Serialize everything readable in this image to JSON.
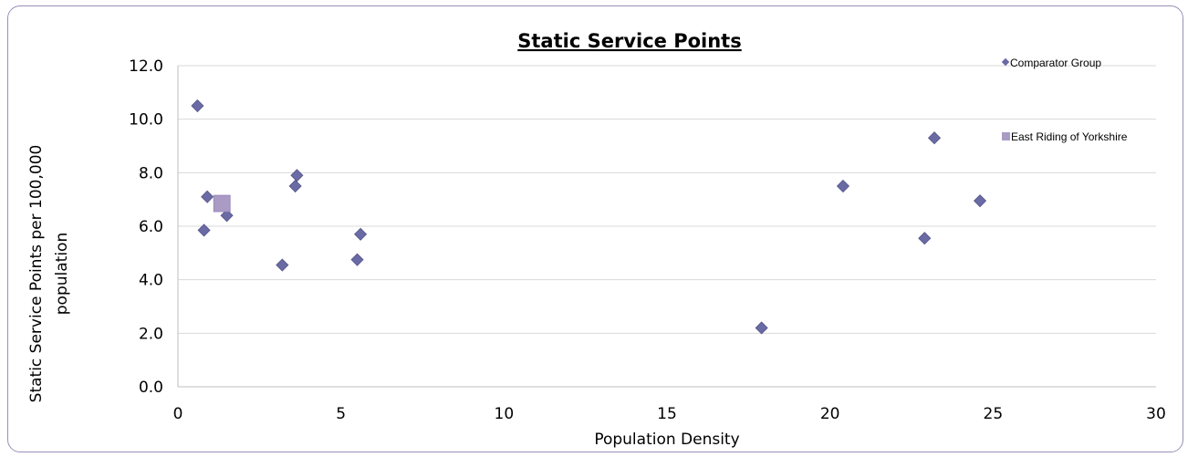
{
  "chart_data": {
    "type": "scatter",
    "title": "Static Service Points",
    "xlabel": "Population Density",
    "ylabel_line1": "Static Service Points per 100,000",
    "ylabel_line2": "population",
    "xlim": [
      0,
      30
    ],
    "ylim": [
      0,
      12
    ],
    "x_ticks": [
      "0",
      "5",
      "10",
      "15",
      "20",
      "25",
      "30"
    ],
    "y_ticks": [
      "0.0",
      "2.0",
      "4.0",
      "6.0",
      "8.0",
      "10.0",
      "12.0"
    ],
    "grid": "horizontal",
    "legend_placement": "right",
    "series": [
      {
        "name": "Comparator Group",
        "marker": "diamond",
        "color": "#6a6aa5",
        "points": [
          {
            "x": 0.6,
            "y": 10.5
          },
          {
            "x": 0.9,
            "y": 7.1
          },
          {
            "x": 0.8,
            "y": 5.85
          },
          {
            "x": 1.5,
            "y": 6.4
          },
          {
            "x": 3.2,
            "y": 4.55
          },
          {
            "x": 3.6,
            "y": 7.5
          },
          {
            "x": 3.65,
            "y": 7.9
          },
          {
            "x": 5.5,
            "y": 4.75
          },
          {
            "x": 5.6,
            "y": 5.7
          },
          {
            "x": 17.9,
            "y": 2.2
          },
          {
            "x": 20.4,
            "y": 7.5
          },
          {
            "x": 22.9,
            "y": 5.55
          },
          {
            "x": 23.2,
            "y": 9.3
          },
          {
            "x": 24.6,
            "y": 6.95
          }
        ]
      },
      {
        "name": "East Riding of Yorkshire",
        "marker": "square",
        "color": "#a99bc4",
        "points": [
          {
            "x": 1.35,
            "y": 6.85
          }
        ]
      }
    ]
  }
}
